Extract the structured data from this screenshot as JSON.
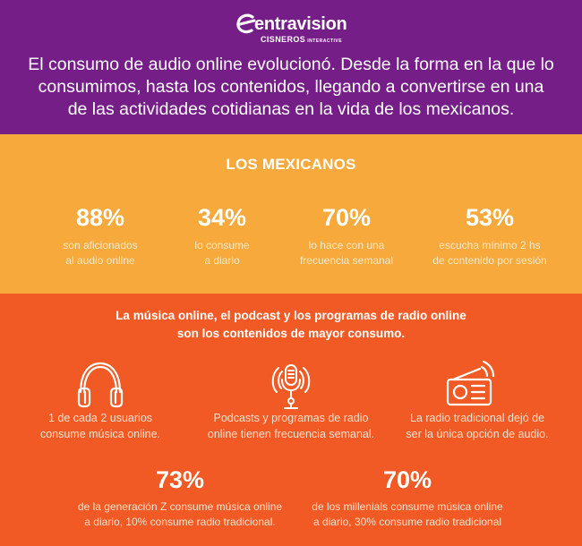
{
  "brand": {
    "name": "entravision",
    "sub": "CISNEROS",
    "sub_small": "INTERACTIVE"
  },
  "intro": {
    "lines": [
      "El consumo de audio online evolucionó. Desde la forma en la que lo",
      "consumimos, hasta los contenidos, llegando a convertirse en una",
      "de las actividades cotidianas en la vida de los mexicanos."
    ]
  },
  "mexicanos": {
    "title": "LOS MEXICANOS",
    "stats": [
      {
        "pct": "88%",
        "lines": [
          "son aficionados",
          "al audio online"
        ]
      },
      {
        "pct": "34%",
        "lines": [
          "lo consume",
          "a diario"
        ]
      },
      {
        "pct": "70%",
        "lines": [
          "lo hace con una",
          "frecuencia semanal"
        ]
      },
      {
        "pct": "53%",
        "lines": [
          "escucha mínimo 2 hs",
          "de contenido por sesión"
        ]
      }
    ]
  },
  "content": {
    "title_lines": [
      "La música online, el podcast y los programas de radio online",
      "son los contenidos de mayor consumo."
    ],
    "features": [
      {
        "icon": "headphones-icon",
        "lines": [
          "1 de cada 2 usuarios",
          "consume música online."
        ]
      },
      {
        "icon": "podcast-microphone-icon",
        "lines": [
          "Podcasts y programas de radio",
          "online tienen frecuencia semanal."
        ]
      },
      {
        "icon": "radio-icon",
        "lines": [
          "La radio tradicional dejó de",
          "ser la única opción de audio."
        ]
      }
    ],
    "generations": [
      {
        "pct": "73%",
        "lines": [
          "de la generación Z consume música online",
          "a diario, 10% consume radio tradicional."
        ]
      },
      {
        "pct": "70%",
        "lines": [
          "de los millenials consume música online",
          "a diario, 30% consume radio tradicional"
        ]
      }
    ]
  },
  "colors": {
    "header": "#761e88",
    "yellow_band": "#f7a93b",
    "orange_band": "#f15a24"
  }
}
